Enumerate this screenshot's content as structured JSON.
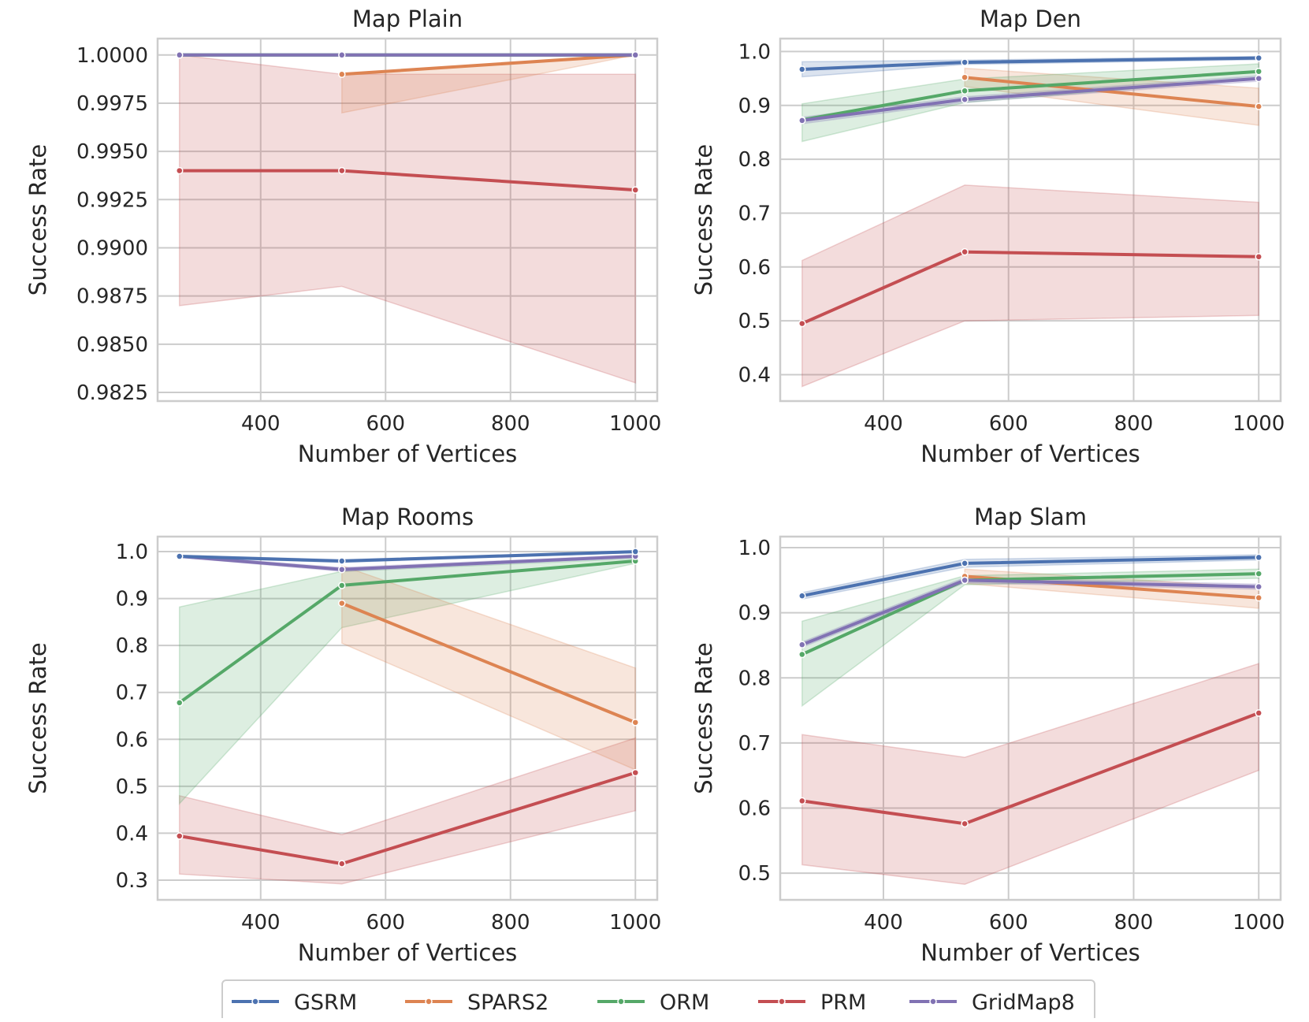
{
  "legend": [
    {
      "name": "GSRM",
      "color": "#4c72b0"
    },
    {
      "name": "SPARS2",
      "color": "#dd8452"
    },
    {
      "name": "ORM",
      "color": "#55a868"
    },
    {
      "name": "PRM",
      "color": "#c44e52"
    },
    {
      "name": "GridMap8",
      "color": "#8172b3"
    }
  ],
  "chart_data": [
    {
      "type": "line",
      "title": "Map Plain",
      "xlabel": "Number of Vertices",
      "ylabel": "Success Rate",
      "xlim": [
        235,
        1035
      ],
      "ylim": [
        0.98205,
        1.00085
      ],
      "xticks": [
        400,
        600,
        800,
        1000
      ],
      "xtick_labels": [
        "400",
        "600",
        "800",
        "1000"
      ],
      "yticks": [
        0.9825,
        0.985,
        0.9875,
        0.99,
        0.9925,
        0.995,
        0.9975,
        1.0
      ],
      "ytick_labels": [
        "0.9825",
        "0.9850",
        "0.9875",
        "0.9900",
        "0.9925",
        "0.9950",
        "0.9975",
        "1.0000"
      ],
      "series": [
        {
          "name": "PRM",
          "x": [
            270,
            530,
            1000
          ],
          "y": [
            0.994,
            0.994,
            0.993
          ],
          "lower": [
            0.987,
            0.988,
            0.983
          ],
          "upper": [
            1.0,
            0.999,
            0.999
          ]
        },
        {
          "name": "SPARS2",
          "x": [
            530,
            1000
          ],
          "y": [
            0.999,
            1.0
          ],
          "lower": [
            0.997,
            1.0
          ],
          "upper": [
            0.999,
            1.0
          ]
        },
        {
          "name": "GSRM",
          "x": [
            270,
            530,
            1000
          ],
          "y": [
            1.0,
            1.0,
            1.0
          ],
          "lower": [
            1.0,
            1.0,
            1.0
          ],
          "upper": [
            1.0,
            1.0,
            1.0
          ]
        },
        {
          "name": "ORM",
          "x": [
            270,
            530,
            1000
          ],
          "y": [
            1.0,
            1.0,
            1.0
          ],
          "lower": [
            1.0,
            1.0,
            1.0
          ],
          "upper": [
            1.0,
            1.0,
            1.0
          ]
        },
        {
          "name": "GridMap8",
          "x": [
            270,
            530,
            1000
          ],
          "y": [
            1.0,
            1.0,
            1.0
          ],
          "lower": [
            1.0,
            1.0,
            1.0
          ],
          "upper": [
            1.0,
            1.0,
            1.0
          ]
        }
      ]
    },
    {
      "type": "line",
      "title": "Map Den",
      "xlabel": "Number of Vertices",
      "ylabel": "Success Rate",
      "xlim": [
        235,
        1035
      ],
      "ylim": [
        0.351,
        1.024
      ],
      "xticks": [
        400,
        600,
        800,
        1000
      ],
      "xtick_labels": [
        "400",
        "600",
        "800",
        "1000"
      ],
      "yticks": [
        0.4,
        0.5,
        0.6,
        0.7,
        0.8,
        0.9,
        1.0
      ],
      "ytick_labels": [
        "0.4",
        "0.5",
        "0.6",
        "0.7",
        "0.8",
        "0.9",
        "1.0"
      ],
      "series": [
        {
          "name": "PRM",
          "x": [
            270,
            530,
            1000
          ],
          "y": [
            0.495,
            0.628,
            0.619
          ],
          "lower": [
            0.378,
            0.5,
            0.51
          ],
          "upper": [
            0.612,
            0.752,
            0.72
          ]
        },
        {
          "name": "SPARS2",
          "x": [
            530,
            1000
          ],
          "y": [
            0.952,
            0.898
          ],
          "lower": [
            0.935,
            0.863
          ],
          "upper": [
            0.969,
            0.932
          ]
        },
        {
          "name": "ORM",
          "x": [
            270,
            530,
            1000
          ],
          "y": [
            0.873,
            0.927,
            0.963
          ],
          "lower": [
            0.833,
            0.905,
            0.95
          ],
          "upper": [
            0.903,
            0.949,
            0.977
          ]
        },
        {
          "name": "GridMap8",
          "x": [
            270,
            530,
            1000
          ],
          "y": [
            0.872,
            0.911,
            0.95
          ],
          "lower": [
            0.866,
            0.906,
            0.945
          ],
          "upper": [
            0.878,
            0.916,
            0.955
          ]
        },
        {
          "name": "GSRM",
          "x": [
            270,
            530,
            1000
          ],
          "y": [
            0.967,
            0.98,
            0.988
          ],
          "lower": [
            0.953,
            0.976,
            0.985
          ],
          "upper": [
            0.981,
            0.984,
            0.991
          ]
        }
      ]
    },
    {
      "type": "line",
      "title": "Map Rooms",
      "xlabel": "Number of Vertices",
      "ylabel": "Success Rate",
      "xlim": [
        235,
        1035
      ],
      "ylim": [
        0.258,
        1.032
      ],
      "xticks": [
        400,
        600,
        800,
        1000
      ],
      "xtick_labels": [
        "400",
        "600",
        "800",
        "1000"
      ],
      "yticks": [
        0.3,
        0.4,
        0.5,
        0.6,
        0.7,
        0.8,
        0.9,
        1.0
      ],
      "ytick_labels": [
        "0.3",
        "0.4",
        "0.5",
        "0.6",
        "0.7",
        "0.8",
        "0.9",
        "1.0"
      ],
      "series": [
        {
          "name": "PRM",
          "x": [
            270,
            530,
            1000
          ],
          "y": [
            0.394,
            0.335,
            0.529
          ],
          "lower": [
            0.313,
            0.292,
            0.448
          ],
          "upper": [
            0.48,
            0.397,
            0.603
          ]
        },
        {
          "name": "ORM",
          "x": [
            270,
            530,
            1000
          ],
          "y": [
            0.678,
            0.928,
            0.98
          ],
          "lower": [
            0.463,
            0.838,
            0.975
          ],
          "upper": [
            0.882,
            0.958,
            0.985
          ]
        },
        {
          "name": "SPARS2",
          "x": [
            530,
            1000
          ],
          "y": [
            0.89,
            0.636
          ],
          "lower": [
            0.805,
            0.535
          ],
          "upper": [
            0.97,
            0.752
          ]
        },
        {
          "name": "GridMap8",
          "x": [
            270,
            530,
            1000
          ],
          "y": [
            0.99,
            0.962,
            0.99
          ],
          "lower": [
            0.988,
            0.958,
            0.987
          ],
          "upper": [
            0.992,
            0.966,
            0.993
          ]
        },
        {
          "name": "GSRM",
          "x": [
            270,
            530,
            1000
          ],
          "y": [
            0.99,
            0.98,
            1.0
          ],
          "lower": [
            0.988,
            0.977,
            0.998
          ],
          "upper": [
            0.992,
            0.983,
            1.0
          ]
        }
      ]
    },
    {
      "type": "line",
      "title": "Map Slam",
      "xlabel": "Number of Vertices",
      "ylabel": "Success Rate",
      "xlim": [
        235,
        1035
      ],
      "ylim": [
        0.459,
        1.017
      ],
      "xticks": [
        400,
        600,
        800,
        1000
      ],
      "xtick_labels": [
        "400",
        "600",
        "800",
        "1000"
      ],
      "yticks": [
        0.5,
        0.6,
        0.7,
        0.8,
        0.9,
        1.0
      ],
      "ytick_labels": [
        "0.5",
        "0.6",
        "0.7",
        "0.8",
        "0.9",
        "1.0"
      ],
      "series": [
        {
          "name": "PRM",
          "x": [
            270,
            530,
            1000
          ],
          "y": [
            0.611,
            0.576,
            0.746
          ],
          "lower": [
            0.513,
            0.483,
            0.658
          ],
          "upper": [
            0.713,
            0.678,
            0.822
          ]
        },
        {
          "name": "SPARS2",
          "x": [
            530,
            1000
          ],
          "y": [
            0.956,
            0.923
          ],
          "lower": [
            0.945,
            0.907
          ],
          "upper": [
            0.967,
            0.939
          ]
        },
        {
          "name": "ORM",
          "x": [
            270,
            530,
            1000
          ],
          "y": [
            0.836,
            0.95,
            0.96
          ],
          "lower": [
            0.757,
            0.943,
            0.953
          ],
          "upper": [
            0.887,
            0.957,
            0.967
          ]
        },
        {
          "name": "GridMap8",
          "x": [
            270,
            530,
            1000
          ],
          "y": [
            0.851,
            0.95,
            0.94
          ],
          "lower": [
            0.847,
            0.946,
            0.936
          ],
          "upper": [
            0.855,
            0.954,
            0.944
          ]
        },
        {
          "name": "GSRM",
          "x": [
            270,
            530,
            1000
          ],
          "y": [
            0.926,
            0.976,
            0.985
          ],
          "lower": [
            0.921,
            0.97,
            0.981
          ],
          "upper": [
            0.931,
            0.982,
            0.989
          ]
        }
      ]
    }
  ]
}
